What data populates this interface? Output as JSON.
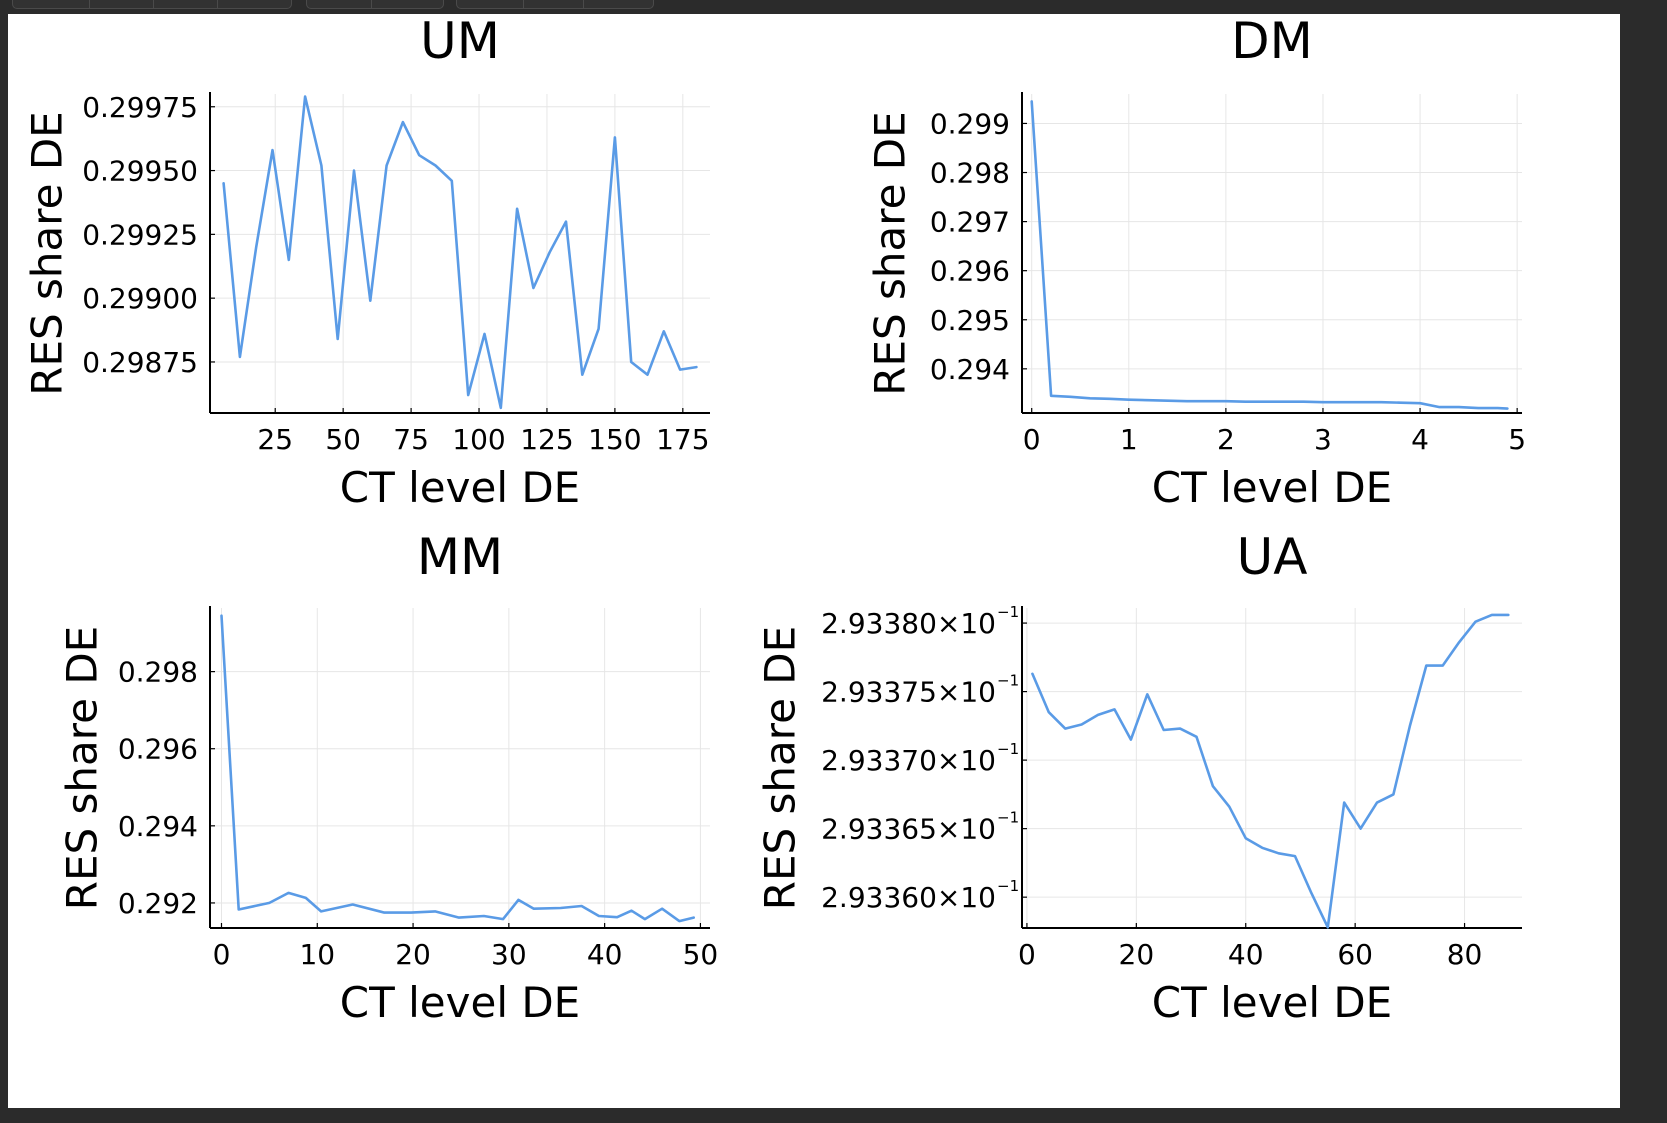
{
  "chart_data": [
    {
      "type": "line",
      "title": "UM",
      "xlabel": "CT level DE",
      "ylabel": "RES share DE",
      "xlim": [
        1,
        185
      ],
      "ylim": [
        0.29855,
        0.2998
      ],
      "xticks": [
        25,
        50,
        75,
        100,
        125,
        150,
        175
      ],
      "xtick_labels": [
        "25",
        "50",
        "75",
        "100",
        "125",
        "150",
        "175"
      ],
      "yticks": [
        0.29875,
        0.299,
        0.29925,
        0.2995,
        0.29975
      ],
      "ytick_labels": [
        "0.29875",
        "0.29900",
        "0.29925",
        "0.29950",
        "0.29975"
      ],
      "grid": true,
      "color": "#5a9be6",
      "series": [
        {
          "x": [
            6,
            12,
            18,
            24,
            30,
            36,
            42,
            48,
            54,
            60,
            66,
            72,
            78,
            84,
            90,
            96,
            102,
            108,
            114,
            120,
            126,
            132,
            138,
            144,
            150,
            156,
            162,
            168,
            174,
            180
          ],
          "values": [
            0.29945,
            0.29877,
            0.2992,
            0.29958,
            0.29915,
            0.29979,
            0.29952,
            0.29884,
            0.2995,
            0.29899,
            0.29952,
            0.29969,
            0.29956,
            0.29952,
            0.29946,
            0.29862,
            0.29886,
            0.29857,
            0.29935,
            0.29904,
            0.29918,
            0.2993,
            0.2987,
            0.29888,
            0.29963,
            0.29875,
            0.2987,
            0.29887,
            0.29872,
            0.29873
          ]
        }
      ]
    },
    {
      "type": "line",
      "title": "DM",
      "xlabel": "CT level DE",
      "ylabel": "RES share DE",
      "xlim": [
        -0.1,
        5.05
      ],
      "ylim": [
        0.2931,
        0.2996
      ],
      "xticks": [
        0,
        1,
        2,
        3,
        4,
        5
      ],
      "xtick_labels": [
        "0",
        "1",
        "2",
        "3",
        "4",
        "5"
      ],
      "yticks": [
        0.294,
        0.295,
        0.296,
        0.297,
        0.298,
        0.299
      ],
      "ytick_labels": [
        "0.294",
        "0.295",
        "0.296",
        "0.297",
        "0.298",
        "0.299"
      ],
      "grid": true,
      "color": "#5a9be6",
      "series": [
        {
          "x": [
            0.0,
            0.2,
            0.4,
            0.6,
            0.8,
            1.0,
            1.2,
            1.4,
            1.6,
            1.8,
            2.0,
            2.2,
            2.4,
            2.6,
            2.8,
            3.0,
            3.2,
            3.4,
            3.6,
            3.8,
            4.0,
            4.2,
            4.4,
            4.6,
            4.8,
            4.9
          ],
          "values": [
            0.29945,
            0.29345,
            0.29343,
            0.2934,
            0.29339,
            0.29337,
            0.29336,
            0.29335,
            0.29334,
            0.29334,
            0.29334,
            0.29333,
            0.29333,
            0.29333,
            0.29333,
            0.29332,
            0.29332,
            0.29332,
            0.29332,
            0.29331,
            0.2933,
            0.29322,
            0.29322,
            0.2932,
            0.2932,
            0.29319
          ]
        }
      ]
    },
    {
      "type": "line",
      "title": "MM",
      "xlabel": "CT level DE",
      "ylabel": "RES share DE",
      "xlim": [
        -1.2,
        51
      ],
      "ylim": [
        0.29135,
        0.29965
      ],
      "xticks": [
        0,
        10,
        20,
        30,
        40,
        50
      ],
      "xtick_labels": [
        "0",
        "10",
        "20",
        "30",
        "40",
        "50"
      ],
      "yticks": [
        0.292,
        0.294,
        0.296,
        0.298
      ],
      "ytick_labels": [
        "0.292",
        "0.294",
        "0.296",
        "0.298"
      ],
      "grid": true,
      "color": "#5a9be6",
      "series": [
        {
          "x": [
            0,
            1.8,
            5,
            7,
            8.8,
            10.4,
            13.7,
            17,
            19.8,
            22.3,
            24.8,
            27.4,
            29.4,
            31,
            32.6,
            35.4,
            37.6,
            39.4,
            41.3,
            42.8,
            44.2,
            46,
            47.8,
            49.3
          ],
          "values": [
            0.29945,
            0.29183,
            0.292,
            0.29226,
            0.29213,
            0.29178,
            0.29196,
            0.29175,
            0.29175,
            0.29178,
            0.29162,
            0.29166,
            0.29158,
            0.29208,
            0.29185,
            0.29187,
            0.29192,
            0.29166,
            0.29163,
            0.2918,
            0.29158,
            0.29185,
            0.29153,
            0.29162
          ]
        }
      ]
    },
    {
      "type": "line",
      "title": "UA",
      "xlabel": "CT level DE",
      "ylabel": "RES share DE",
      "xlim": [
        -0.9,
        90.5
      ],
      "ylim": [
        2.9335775,
        2.933811
      ],
      "xticks": [
        0,
        20,
        40,
        60,
        80
      ],
      "xtick_labels": [
        "0",
        "20",
        "40",
        "60",
        "80"
      ],
      "yticks": [
        2.9336,
        2.93365,
        2.9337,
        2.93375,
        2.9338
      ],
      "ytick_labels": [
        "2.93360×10",
        "2.93365×10",
        "2.93370×10",
        "2.93375×10",
        "2.93380×10"
      ],
      "ytick_exponent": "−1",
      "grid": true,
      "color": "#5a9be6",
      "series": [
        {
          "x": [
            1,
            4,
            7,
            10,
            13,
            16,
            19,
            22,
            25,
            28,
            31,
            34,
            37,
            40,
            43,
            46,
            49,
            52,
            55,
            58,
            61,
            64,
            67,
            70,
            73,
            76,
            79,
            82,
            85,
            88
          ],
          "values": [
            2.933763,
            2.933735,
            2.933723,
            2.933726,
            2.933733,
            2.933737,
            2.933715,
            2.933748,
            2.933722,
            2.933723,
            2.933717,
            2.933681,
            2.933666,
            2.933643,
            2.933636,
            2.933632,
            2.93363,
            2.933603,
            2.933578,
            2.933669,
            2.93365,
            2.933669,
            2.933675,
            2.933725,
            2.933769,
            2.933769,
            2.933786,
            2.933801,
            2.933806,
            2.933806
          ]
        }
      ]
    }
  ]
}
